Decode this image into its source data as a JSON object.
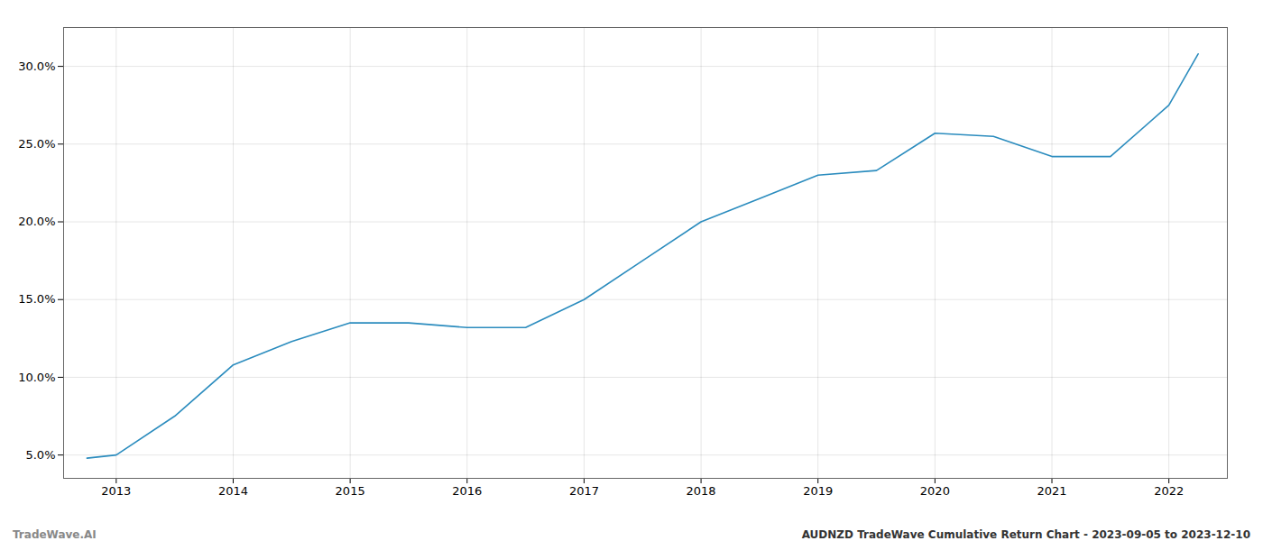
{
  "chart_data": {
    "type": "line",
    "title": "AUDNZD TradeWave Cumulative Return Chart - 2023-09-05 to 2023-12-10",
    "annotations": [
      "TradeWave.AI"
    ],
    "x": [
      2012.75,
      2013.0,
      2013.5,
      2014.0,
      2014.5,
      2015.0,
      2015.5,
      2016.0,
      2016.5,
      2017.0,
      2017.5,
      2018.0,
      2018.5,
      2019.0,
      2019.5,
      2020.0,
      2020.25,
      2020.5,
      2021.0,
      2021.5,
      2022.0,
      2022.25
    ],
    "values": [
      4.8,
      5.0,
      7.5,
      10.8,
      12.3,
      13.5,
      13.5,
      13.2,
      13.2,
      15.0,
      17.5,
      20.0,
      21.5,
      23.0,
      23.3,
      25.7,
      25.6,
      25.5,
      24.2,
      24.2,
      27.5,
      30.8
    ],
    "color": "#2b8cbe",
    "xlim": [
      2012.55,
      2022.5
    ],
    "ylim": [
      3.5,
      32.5
    ],
    "xticks": [
      2013,
      2014,
      2015,
      2016,
      2017,
      2018,
      2019,
      2020,
      2021,
      2022
    ],
    "yticks": [
      {
        "value": 5.0,
        "label": "5.0%"
      },
      {
        "value": 10.0,
        "label": "10.0%"
      },
      {
        "value": 15.0,
        "label": "15.0%"
      },
      {
        "value": 20.0,
        "label": "20.0%"
      },
      {
        "value": 25.0,
        "label": "25.0%"
      },
      {
        "value": 30.0,
        "label": "30.0%"
      }
    ],
    "grid": true
  }
}
